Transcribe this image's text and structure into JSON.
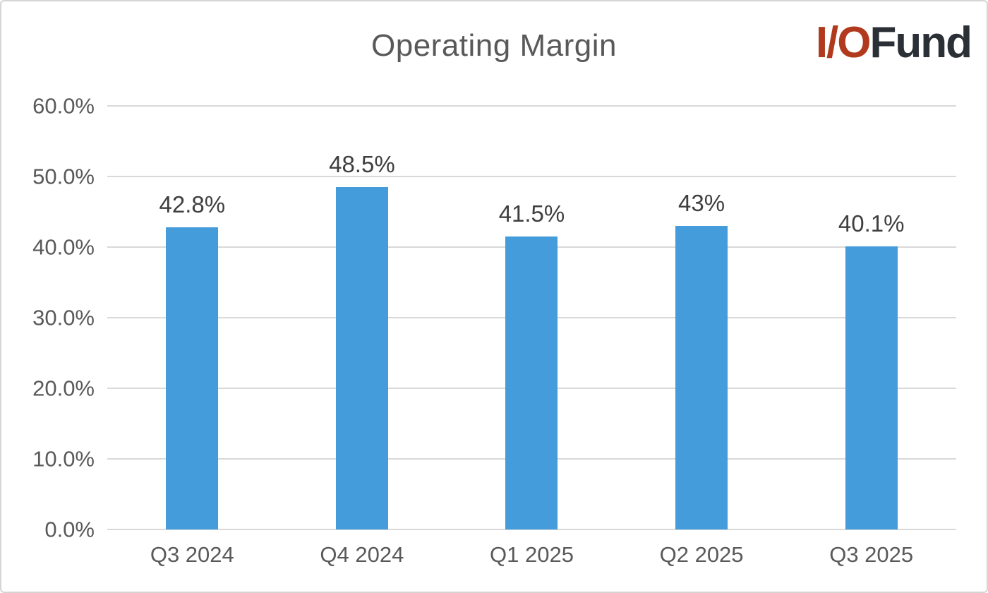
{
  "chart": {
    "title": "Operating Margin"
  },
  "logo": {
    "io": "I/O",
    "fund": "Fund"
  },
  "colors": {
    "bar": "#449CDB",
    "gridline": "#D9D9D9",
    "axis_text": "#595959",
    "data_label": "#3F3F3F",
    "title_text": "#595959",
    "logo_red": "#B13A1E",
    "logo_dark": "#2B2F36",
    "card_border": "#D5D5D5"
  },
  "chart_data": {
    "type": "bar",
    "title": "Operating Margin",
    "categories": [
      "Q3 2024",
      "Q4 2024",
      "Q1 2025",
      "Q2 2025",
      "Q3 2025"
    ],
    "values": [
      42.8,
      48.5,
      41.5,
      43,
      40.1
    ],
    "value_labels": [
      "42.8%",
      "48.5%",
      "41.5%",
      "43%",
      "40.1%"
    ],
    "xlabel": "",
    "ylabel": "",
    "ylim": [
      0,
      60
    ],
    "yticks": [
      {
        "label": "0.0%",
        "value": 0
      },
      {
        "label": "10.0%",
        "value": 10
      },
      {
        "label": "20.0%",
        "value": 20
      },
      {
        "label": "30.0%",
        "value": 30
      },
      {
        "label": "40.0%",
        "value": 40
      },
      {
        "label": "50.0%",
        "value": 50
      },
      {
        "label": "60.0%",
        "value": 60
      }
    ],
    "grid": true,
    "legend": false,
    "bar_color": "#449CDB"
  }
}
